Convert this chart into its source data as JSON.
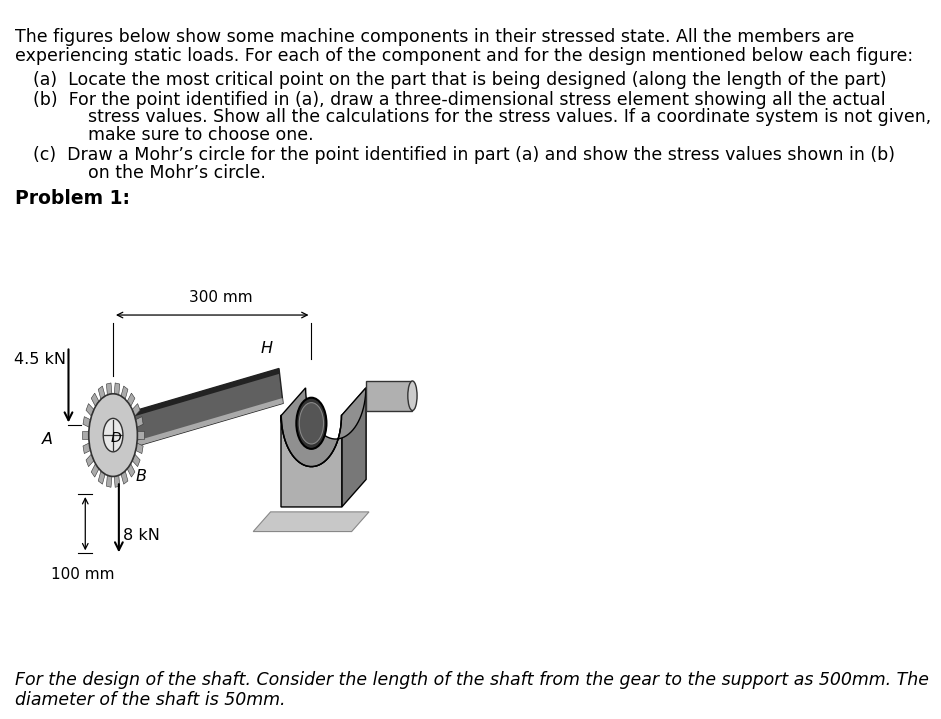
{
  "bg_color": "#ffffff",
  "text_color": "#000000",
  "title_line1": "The figures below show some machine components in their stressed state. All the members are",
  "title_line2": "experiencing static loads. For each of the component and for the design mentioned below each figure:",
  "item_a": "(a)  Locate the most critical point on the part that is being designed (along the length of the part)",
  "item_b1": "(b)  For the point identified in (a), draw a three-dimensional stress element showing all the actual",
  "item_b2": "          stress values. Show all the calculations for the stress values. If a coordinate system is not given,",
  "item_b3": "          make sure to choose one.",
  "item_c1": "(c)  Draw a Mohr’s circle for the point identified in part (a) and show the stress values shown in (b)",
  "item_c2": "          on the Mohr’s circle.",
  "problem_label": "Problem 1:",
  "footer_line1": "For the design of the shaft. Consider the length of the shaft from the gear to the support as 500mm. The",
  "footer_line2": "diameter of the shaft is 50mm.",
  "label_300mm": "300 mm",
  "label_4_5kN": "4.5 kN",
  "label_8kN": "8 kN",
  "label_100mm": "100 mm",
  "label_H": "H",
  "label_A": "A",
  "label_B": "B",
  "label_D": "D",
  "shaft_color": "#555555",
  "shaft_highlight": "#999999",
  "shaft_shadow": "#222222",
  "gear_body": "#aaaaaa",
  "gear_teeth": "#888888",
  "block_front": "#b0b0b0",
  "block_top": "#d0d0d0",
  "block_right": "#787878",
  "block_base": "#c0c0c0",
  "black": "#000000"
}
